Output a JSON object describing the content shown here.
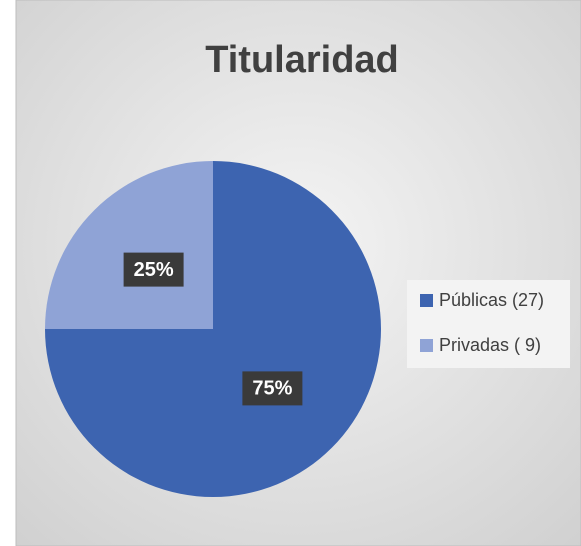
{
  "chart_data": {
    "type": "pie",
    "title": "Titularidad",
    "categories": [
      "Públicas (27)",
      "Privadas ( 9)"
    ],
    "values": [
      75,
      25
    ],
    "value_labels": [
      "75%",
      "25%"
    ],
    "colors": [
      "#3d64b0",
      "#8fa3d6"
    ],
    "legend": "right"
  }
}
